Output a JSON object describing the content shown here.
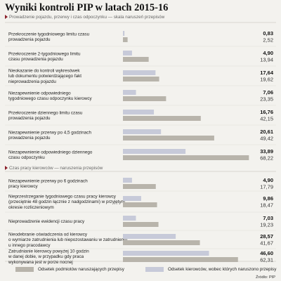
{
  "title": "Wyniki kontroli PIP w latach 2015-16",
  "colors": {
    "violations_bar": "#b8b4ab",
    "drivers_bar": "#c7cad9",
    "marker": "#8b1f2a",
    "background": "#f3f2ee"
  },
  "legend": {
    "violations": "Odsetek podmiotów naruszających przepisy",
    "drivers": "Odsetek kierowców, wobec których naruszono przepisy"
  },
  "source": "Źródło: PIP",
  "chart_data": {
    "type": "bar",
    "orientation": "horizontal",
    "xlim": [
      0,
      70
    ],
    "sections": [
      {
        "title": "Prowadzenie pojazdu, przerwy i czas odpoczynku — skala naruszeń przepisów",
        "rows": [
          {
            "label": [
              "Przekroczenie tygodniowego limitu czasu",
              "prowadzenia pojazdu"
            ],
            "drivers": 0.83,
            "violations": 2.52,
            "drivers_text": "0,83",
            "violations_text": "2,52"
          },
          {
            "label": [
              "Przekroczenie 2-tygodniowego limitu",
              "czasu prowadzenia pojazdu"
            ],
            "drivers": 4.9,
            "violations": 13.94,
            "drivers_text": "4,90",
            "violations_text": "13,94"
          },
          {
            "label": [
              "Nieokazanie do kontroli wykresówek",
              "lub dokumentu potwierdzającego fakt",
              "nieprowadzenia pojazdu"
            ],
            "drivers": 17.64,
            "violations": 19.62,
            "drivers_text": "17,64",
            "violations_text": "19,62"
          },
          {
            "label": [
              "Niezapewnienie odpowiedniego",
              "tygodniowego czasu odpoczynku kierowcy"
            ],
            "drivers": 7.06,
            "violations": 23.35,
            "drivers_text": "7,06",
            "violations_text": "23,35"
          },
          {
            "label": [
              "Przekroczenie dziennego limitu czasu",
              "prowadzenia pojazdu"
            ],
            "drivers": 16.76,
            "violations": 42.15,
            "drivers_text": "16,76",
            "violations_text": "42,15"
          },
          {
            "label": [
              "Niezapewnienie przerwy po 4,5 godzinach",
              "prowadzenia pojazdu"
            ],
            "drivers": 20.61,
            "violations": 49.42,
            "drivers_text": "20,61",
            "violations_text": "49,42"
          },
          {
            "label": [
              "Niezapewnienie odpowiedniego dziennego",
              "czasu odpoczynku"
            ],
            "drivers": 33.89,
            "violations": 68.22,
            "drivers_text": "33,89",
            "violations_text": "68,22"
          }
        ]
      },
      {
        "title": "Czas pracy kierowców — naruszenia przepisów",
        "rows": [
          {
            "label": [
              "Niezapewnienie przerwy po 6 godzinach",
              "pracy kierowcy"
            ],
            "drivers": 4.9,
            "violations": 17.79,
            "drivers_text": "4,90",
            "violations_text": "17,79"
          },
          {
            "label": [
              "Nieprzestrzeganie tygodniowego czasu pracy kierowcy",
              "(przeciętnie 48 godzin łącznie z nadgodzinami) w przyjętym",
              "okresie rozliczeniowym"
            ],
            "drivers": 9.86,
            "violations": 18.47,
            "drivers_text": "9,86",
            "violations_text": "18,47"
          },
          {
            "label": [
              "Nieprowadzenie ewidencji czasu pracy"
            ],
            "drivers": 7.03,
            "violations": 19.23,
            "drivers_text": "7,03",
            "violations_text": "19,23"
          },
          {
            "label": [
              "Nieodebranie oświadczenia od kierowcy",
              "o wymiarze zatrudnienia lub niepozostawaniu w zatrudnieniu",
              "u innego pracodawcy"
            ],
            "drivers": 28.57,
            "violations": 41.67,
            "drivers_text": "28,57",
            "violations_text": "41,67"
          },
          {
            "label": [
              "Zatrudnianie kierowcy powyżej 10 godzin",
              "w danej dobie, w przypadku gdy praca",
              "wykonywana jest w porze nocnej"
            ],
            "drivers": 46.6,
            "violations": 62.31,
            "drivers_text": "46,60",
            "violations_text": "62,31"
          }
        ]
      }
    ]
  }
}
